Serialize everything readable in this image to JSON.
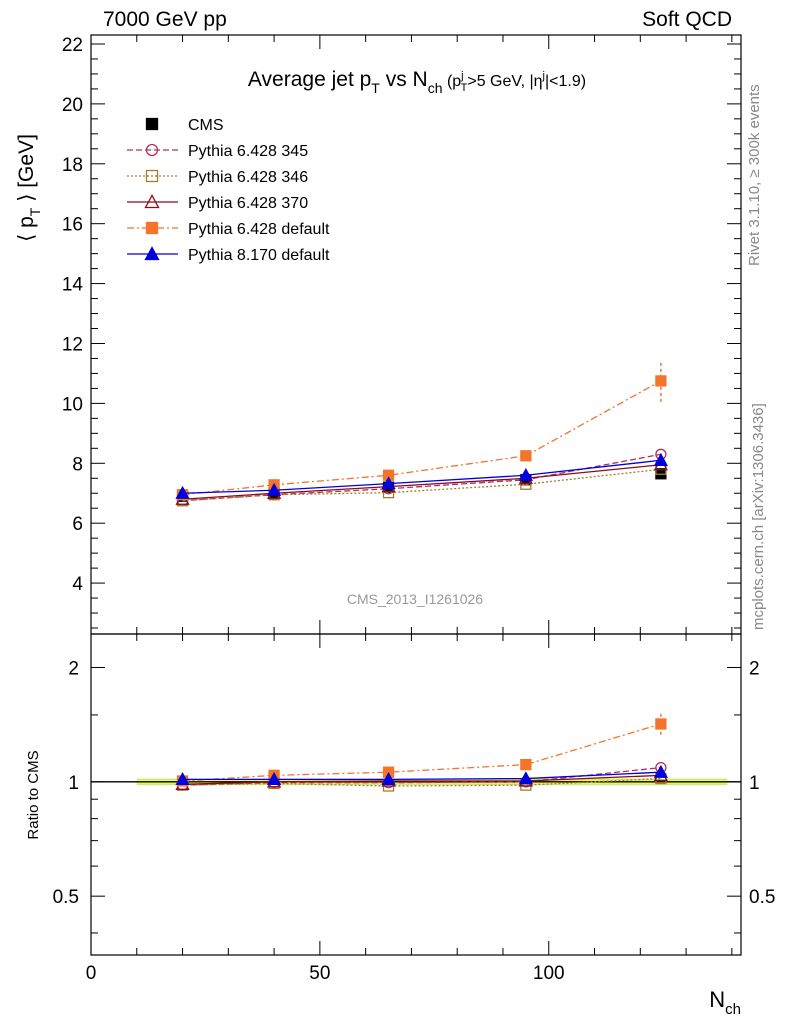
{
  "header": {
    "left": "7000 GeV pp",
    "right": "Soft QCD"
  },
  "side_labels": {
    "rivet": "Rivet 3.1.10, ≥ 300k events",
    "mcplots": "mcplots.cern.ch [arXiv:1306.3436]"
  },
  "chart_data": [
    {
      "type": "line",
      "title": "Average jet p_T vs N_ch (p_T^j>5 GeV, |η^j|<1.9)",
      "ylabel": "⟨ p_T ⟩ [GeV]",
      "ylim": [
        2.3,
        22.3
      ],
      "yticks": [
        4,
        6,
        8,
        10,
        12,
        14,
        16,
        18,
        20,
        22
      ],
      "xlim": [
        0,
        142
      ],
      "watermark": "CMS_2013_I1261026",
      "legend_position": "top-left",
      "x": [
        20,
        40,
        65,
        95,
        124.5
      ],
      "series": [
        {
          "name": "CMS",
          "color": "#000000",
          "marker": "filled-square",
          "line": "none",
          "values": [
            6.9,
            7.0,
            7.2,
            7.45,
            7.65
          ]
        },
        {
          "name": "Pythia 6.428 345",
          "color": "#b03060",
          "marker": "open-circle",
          "line": "dashed",
          "values": [
            6.75,
            6.95,
            7.15,
            7.45,
            8.3
          ]
        },
        {
          "name": "Pythia 6.428 346",
          "color": "#a57c2a",
          "marker": "open-square",
          "line": "dotted",
          "values": [
            6.75,
            6.95,
            7.02,
            7.3,
            7.8
          ]
        },
        {
          "name": "Pythia 6.428 370",
          "color": "#8b0a1a",
          "marker": "open-triangle",
          "line": "solid",
          "values": [
            6.8,
            7.0,
            7.22,
            7.5,
            7.95
          ]
        },
        {
          "name": "Pythia 6.428 default",
          "color": "#f4742c",
          "marker": "filled-square",
          "line": "dashdot",
          "values": [
            6.95,
            7.28,
            7.6,
            8.25,
            10.75
          ],
          "yerr": [
            0,
            0,
            0,
            0,
            0.7
          ]
        },
        {
          "name": "Pythia 8.170 default",
          "color": "#0000dd",
          "marker": "filled-triangle",
          "line": "solid",
          "values": [
            7.0,
            7.1,
            7.32,
            7.6,
            8.1
          ]
        }
      ]
    },
    {
      "type": "line",
      "ylabel": "Ratio to CMS",
      "xlabel": "N_ch",
      "log_y": true,
      "ylim": [
        0.35,
        2.45
      ],
      "yticks": [
        0.5,
        1,
        2
      ],
      "xlim": [
        0,
        142
      ],
      "xticks": [
        0,
        50,
        100
      ],
      "x": [
        20,
        40,
        65,
        95,
        124.5
      ],
      "reference_band": {
        "x": [
          10,
          139
        ],
        "color": "#c8ef6e",
        "half_width": 0.02
      },
      "series": [
        {
          "name": "Pythia 6.428 345",
          "values": [
            0.98,
            0.995,
            0.995,
            1.0,
            1.09
          ]
        },
        {
          "name": "Pythia 6.428 346",
          "values": [
            0.98,
            0.99,
            0.975,
            0.98,
            1.02
          ]
        },
        {
          "name": "Pythia 6.428 370",
          "values": [
            0.985,
            1.0,
            1.005,
            1.005,
            1.04
          ]
        },
        {
          "name": "Pythia 6.428 default",
          "values": [
            1.005,
            1.04,
            1.06,
            1.11,
            1.42
          ],
          "yerr": [
            0,
            0,
            0,
            0,
            0.09
          ]
        },
        {
          "name": "Pythia 8.170 default",
          "values": [
            1.015,
            1.015,
            1.015,
            1.02,
            1.06
          ]
        }
      ]
    }
  ]
}
